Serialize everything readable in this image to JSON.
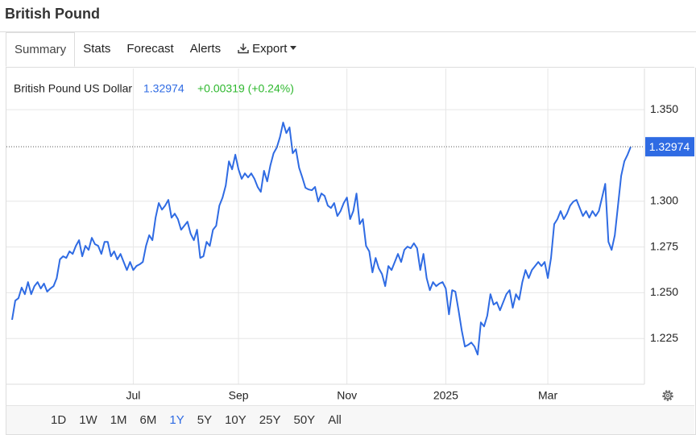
{
  "header": {
    "title": "British Pound"
  },
  "tabs": {
    "items": [
      "Summary",
      "Stats",
      "Forecast",
      "Alerts",
      "Export"
    ],
    "selected": "Summary"
  },
  "chart_data": {
    "type": "line",
    "change": "+0.00319 (+0.24%)",
    "categories": [
      null,
      null,
      null,
      null,
      null,
      null,
      null,
      null,
      null,
      null,
      null,
      null,
      null,
      null,
      null,
      null,
      null,
      null,
      null,
      null,
      null,
      null,
      null,
      null,
      null,
      null,
      null,
      null,
      null,
      null,
      null,
      null,
      null,
      null,
      null,
      null,
      null,
      null,
      "Jul",
      null,
      null,
      null,
      null,
      null,
      null,
      null,
      null,
      null,
      null,
      null,
      null,
      null,
      null,
      null,
      null,
      null,
      null,
      null,
      null,
      null,
      null,
      null,
      null,
      null,
      null,
      null,
      null,
      null,
      null,
      null,
      null,
      "Sep",
      null,
      null,
      null,
      null,
      null,
      null,
      null,
      null,
      null,
      null,
      null,
      null,
      null,
      null,
      null,
      null,
      null,
      null,
      null,
      null,
      null,
      null,
      null,
      null,
      null,
      null,
      null,
      null,
      null,
      null,
      null,
      null,
      null,
      "Nov",
      null,
      null,
      null,
      null,
      null,
      null,
      null,
      null,
      null,
      null,
      null,
      null,
      null,
      null,
      null,
      null,
      null,
      null,
      null,
      null,
      null,
      null,
      null,
      null,
      null,
      null,
      null,
      null,
      null,
      null,
      "2025",
      null,
      null,
      null,
      null,
      null,
      null,
      null,
      null,
      null,
      null,
      null,
      null,
      null,
      null,
      null,
      null,
      null,
      null,
      null,
      null,
      null,
      null,
      null,
      null,
      null,
      null,
      null,
      null,
      null,
      null,
      null,
      "Mar",
      null,
      null,
      null,
      null,
      null,
      null,
      null,
      null,
      null,
      null,
      null,
      null,
      null,
      null,
      null,
      null,
      null,
      null,
      null,
      null,
      null,
      null,
      null,
      null,
      null,
      null
    ],
    "series": [
      {
        "name": "British Pound US Dollar",
        "color": "#2f6be3",
        "values": [
          1.2352,
          1.2457,
          1.247,
          1.2528,
          1.2492,
          1.2558,
          1.2492,
          1.2536,
          1.2558,
          1.2523,
          1.255,
          1.2506,
          1.2523,
          1.2536,
          1.258,
          1.2682,
          1.2699,
          1.269,
          1.2726,
          1.2712,
          1.2756,
          1.2787,
          1.2699,
          1.2756,
          1.2734,
          1.28,
          1.2765,
          1.2756,
          1.2712,
          1.2778,
          1.2778,
          1.2699,
          1.2726,
          1.2682,
          1.2712,
          1.2668,
          1.2624,
          1.2668,
          1.2624,
          1.2646,
          1.2655,
          1.2668,
          1.2756,
          1.2814,
          1.2787,
          1.291,
          1.299,
          1.2954,
          1.2976,
          1.3007,
          1.291,
          1.2932,
          1.2902,
          1.2844,
          1.2866,
          1.2888,
          1.2822,
          1.2787,
          1.2844,
          1.269,
          1.2699,
          1.2778,
          1.2756,
          1.2844,
          1.2866,
          1.2976,
          1.302,
          1.3086,
          1.3218,
          1.3174,
          1.3254,
          1.3174,
          1.3122,
          1.3152,
          1.313,
          1.3152,
          1.3122,
          1.3078,
          1.3051,
          1.3166,
          1.3108,
          1.3196,
          1.3262,
          1.3293,
          1.335,
          1.343,
          1.3372,
          1.3403,
          1.3262,
          1.3284,
          1.3183,
          1.313,
          1.3073,
          1.3064,
          1.306,
          1.3078,
          1.2998,
          1.3042,
          1.3029,
          1.2976,
          1.2963,
          1.299,
          1.2919,
          1.2946,
          1.299,
          1.302,
          1.2902,
          1.2946,
          1.3042,
          1.2875,
          1.2902,
          1.2756,
          1.2726,
          1.2611,
          1.269,
          1.2633,
          1.2602,
          1.2536,
          1.2646,
          1.2624,
          1.2668,
          1.2712,
          1.2668,
          1.2734,
          1.2752,
          1.2743,
          1.277,
          1.2743,
          1.2624,
          1.2712,
          1.258,
          1.2514,
          1.2558,
          1.2536,
          1.255,
          1.2558,
          1.2523,
          1.2382,
          1.2514,
          1.2506,
          1.2404,
          1.2294,
          1.2206,
          1.2215,
          1.2228,
          1.2206,
          1.2162,
          1.2338,
          1.2316,
          1.2374,
          1.2492,
          1.2435,
          1.2448,
          1.2404,
          1.2448,
          1.2492,
          1.2514,
          1.2418,
          1.2492,
          1.2462,
          1.2558,
          1.2624,
          1.258,
          1.2624,
          1.2646,
          1.2668,
          1.2646,
          1.2668,
          1.258,
          1.269,
          1.2875,
          1.2902,
          1.2946,
          1.2902,
          1.2932,
          1.2976,
          1.2998,
          1.3007,
          1.2963,
          1.2919,
          1.2946,
          1.291,
          1.2946,
          1.2919,
          1.2946,
          1.302,
          1.3095,
          1.2778,
          1.2734,
          1.2814,
          1.2976,
          1.3139,
          1.3218,
          1.3254,
          1.32974
        ]
      }
    ],
    "ylim": [
      1.2,
      1.3725
    ],
    "yticks": [
      1.225,
      {
        "value": 1.25,
        "label": "1.250"
      },
      1.275,
      {
        "value": 1.3,
        "label": "1.300"
      },
      {
        "value": 1.35,
        "label": "1.350"
      }
    ],
    "grid": true
  },
  "ranges": {
    "items": [
      "1D",
      "1W",
      "1M",
      "6M",
      "1Y",
      "5Y",
      "10Y",
      "25Y",
      "50Y",
      "All"
    ],
    "selected": "1Y"
  }
}
